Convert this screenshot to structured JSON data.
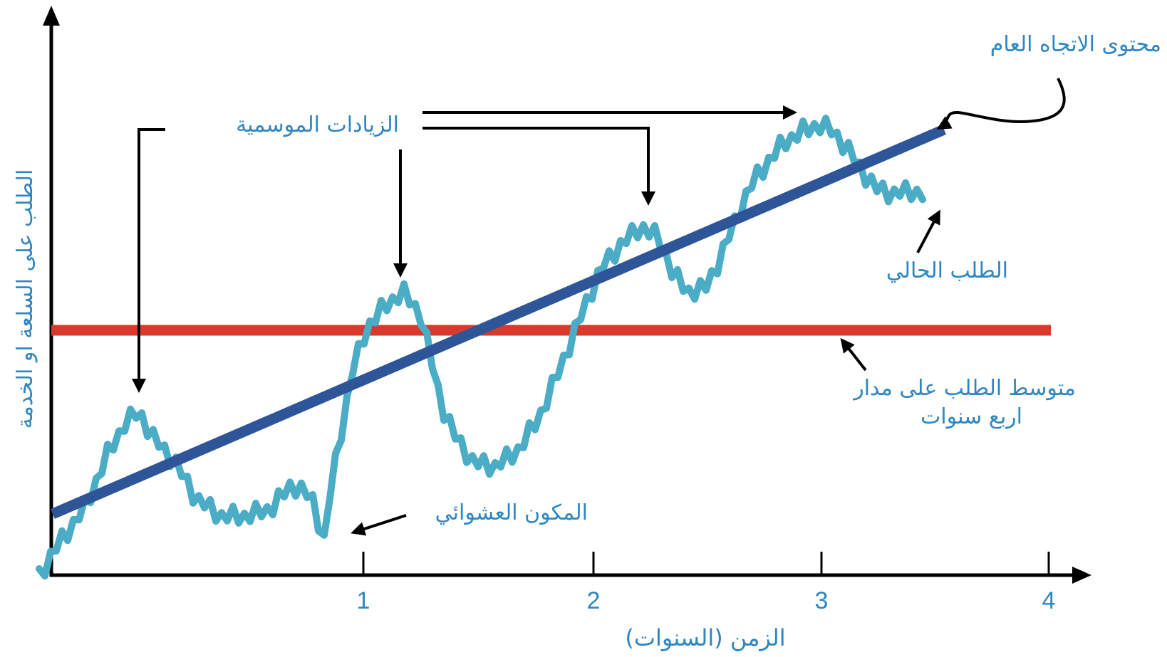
{
  "diagram": {
    "axes": {
      "x_label": "الزمن (السنوات)",
      "y_label": "الطلب على السلعة او الخدمة",
      "x_ticks": [
        "1",
        "2",
        "3",
        "4"
      ]
    },
    "annotations": {
      "trend": "محتوى الاتجاه العام",
      "seasonal": "الزيادات الموسمية",
      "actual": "الطلب الحالي",
      "average_line1": "متوسط الطلب على مدار",
      "average_line2": "اربع سنوات",
      "random": "المكون العشوائي"
    },
    "colors": {
      "actual_demand": "#4bacc6",
      "trend": "#2e5597",
      "average": "#d73a2c",
      "text": "#2e86c1",
      "axes": "#000000"
    }
  }
}
